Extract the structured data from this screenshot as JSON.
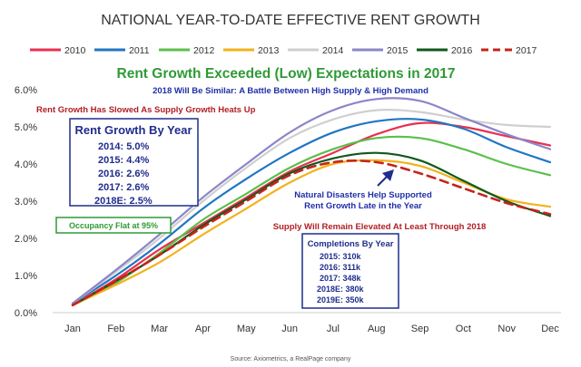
{
  "chart_data": {
    "type": "line",
    "title": "NATIONAL YEAR-TO-DATE EFFECTIVE RENT GROWTH",
    "subtitle": "Rent Growth Exceeded (Low) Expectations in 2017",
    "source": "Source: Axiometrics, a RealPage company",
    "x": [
      "Jan",
      "Feb",
      "Mar",
      "Apr",
      "May",
      "Jun",
      "Jul",
      "Aug",
      "Sep",
      "Oct",
      "Nov",
      "Dec"
    ],
    "ylim": [
      0,
      6
    ],
    "yticks": [
      "0.0%",
      "1.0%",
      "2.0%",
      "3.0%",
      "4.0%",
      "5.0%",
      "6.0%"
    ],
    "series": [
      {
        "name": "2010",
        "color": "#e8304f",
        "dash": false,
        "values": [
          0.2,
          0.9,
          1.7,
          2.4,
          3.1,
          3.8,
          4.3,
          4.8,
          5.1,
          5.0,
          4.75,
          4.5
        ]
      },
      {
        "name": "2011",
        "color": "#1f76c2",
        "dash": false,
        "values": [
          0.25,
          1.0,
          1.85,
          2.8,
          3.6,
          4.3,
          4.85,
          5.15,
          5.2,
          4.95,
          4.45,
          4.05
        ]
      },
      {
        "name": "2012",
        "color": "#5cbf4c",
        "dash": false,
        "values": [
          0.2,
          0.8,
          1.6,
          2.5,
          3.2,
          3.9,
          4.4,
          4.7,
          4.7,
          4.4,
          4.0,
          3.7
        ]
      },
      {
        "name": "2013",
        "color": "#f2b21b",
        "dash": false,
        "values": [
          0.2,
          0.75,
          1.35,
          2.1,
          2.8,
          3.5,
          4.0,
          4.1,
          3.95,
          3.5,
          3.05,
          2.85
        ]
      },
      {
        "name": "2014",
        "color": "#cfcfcf",
        "dash": false,
        "values": [
          0.25,
          1.1,
          2.0,
          3.0,
          3.9,
          4.7,
          5.2,
          5.45,
          5.4,
          5.2,
          5.05,
          5.0
        ]
      },
      {
        "name": "2015",
        "color": "#8b86c9",
        "dash": false,
        "values": [
          0.25,
          1.15,
          2.1,
          3.1,
          4.0,
          4.85,
          5.45,
          5.75,
          5.7,
          5.25,
          4.8,
          4.4
        ]
      },
      {
        "name": "2016",
        "color": "#0d5a1b",
        "dash": false,
        "values": [
          0.2,
          0.85,
          1.55,
          2.35,
          3.05,
          3.75,
          4.15,
          4.3,
          4.1,
          3.55,
          3.0,
          2.6
        ]
      },
      {
        "name": "2017",
        "color": "#c5241b",
        "dash": true,
        "values": [
          0.2,
          0.85,
          1.55,
          2.3,
          3.0,
          3.7,
          4.05,
          4.05,
          3.75,
          3.35,
          2.95,
          2.65
        ]
      }
    ],
    "legend_position": "top",
    "grid": false
  },
  "annotations": {
    "forecast_note": "2018 Will Be Similar: A Battle Between High Supply & High Demand",
    "slowed_note": "Rent Growth Has Slowed As Supply Growth Heats Up",
    "occupancy_note": "Occupancy Flat at 95%",
    "disaster_note_1": "Natural Disasters Help Supported",
    "disaster_note_2": "Rent Growth Late in the Year",
    "supply_note": "Supply Will Remain Elevated At Least Through 2018"
  },
  "rent_growth_box": {
    "title": "Rent Growth By Year",
    "rows": [
      "2014: 5.0%",
      "2015: 4.4%",
      "2016: 2.6%",
      "2017: 2.6%",
      "2018E: 2.5%"
    ]
  },
  "completions_box": {
    "title": "Completions By Year",
    "rows": [
      "2015: 310k",
      "2016: 311k",
      "2017: 348k",
      "2018E: 380k",
      "2019E: 350k"
    ]
  }
}
